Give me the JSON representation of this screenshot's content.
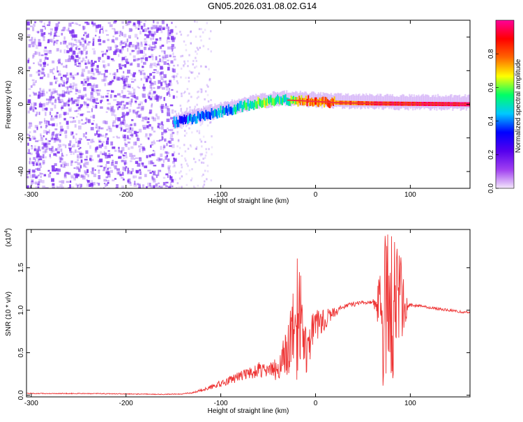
{
  "title": "GN05.2026.031.08.02.G14",
  "colors": {
    "snr_line": "#ee3333",
    "spectrum_noise": "#7a2cf0",
    "spectrum_trace": "#ee3344",
    "frame": "#000000"
  },
  "chart_data": [
    {
      "type": "heatmap",
      "xlabel": "Height of straight line (km)",
      "ylabel": "Frequency (Hz)",
      "xlim": [
        -305,
        163
      ],
      "ylim": [
        -50,
        50
      ],
      "xticks": [
        -300,
        -200,
        -100,
        0,
        100
      ],
      "yticks": [
        -40,
        -20,
        0,
        20,
        40
      ],
      "colorbar": {
        "label": "Normalized spectral amplitude",
        "range": [
          0.0,
          1.0
        ],
        "ticks": [
          0.0,
          0.2,
          0.4,
          0.6,
          0.8
        ],
        "tick_labels": [
          "0.0",
          "0.2",
          "0.4",
          "0.6",
          "0.8"
        ],
        "colormap": [
          "#f4e8fb",
          "#a040f0",
          "#5500ee",
          "#0000ff",
          "#00c8ff",
          "#00ff66",
          "#ffff00",
          "#ff6600",
          "#ff0000",
          "#ff0099"
        ]
      },
      "ridge": {
        "x": [
          -150,
          -120,
          -90,
          -60,
          -45,
          -30,
          -10,
          20,
          60,
          100,
          163
        ],
        "frequency": [
          -11,
          -7,
          -3,
          1,
          2,
          2.5,
          2,
          1,
          0.5,
          0.3,
          0
        ],
        "amplitude": [
          0.35,
          0.4,
          0.45,
          0.6,
          0.55,
          0.5,
          0.8,
          0.75,
          0.85,
          0.9,
          0.95
        ]
      },
      "noise_region": {
        "x": [
          -305,
          -150
        ],
        "amplitude": 0.15
      }
    },
    {
      "type": "line",
      "xlabel": "Height of straight line (km)",
      "ylabel": "SNR (10 * v/v)",
      "y_multiplier": "(x10",
      "y_multiplier_exp": "4",
      "xlim": [
        -305,
        163
      ],
      "ylim": [
        -0.02,
        1.95
      ],
      "xticks": [
        -300,
        -200,
        -100,
        0,
        100
      ],
      "yticks": [
        0.0,
        0.5,
        1.0,
        1.5
      ],
      "ytick_labels": [
        "0.0",
        "0.5",
        "1.0",
        "1.5"
      ],
      "series": [
        {
          "x": [
            -305,
            -250,
            -200,
            -160,
            -140,
            -130,
            -120,
            -110,
            -100,
            -90,
            -80,
            -70,
            -60,
            -50,
            -40,
            -30,
            -25,
            -20,
            -17,
            -15,
            -10,
            -5,
            0,
            10,
            20,
            30,
            40,
            50,
            60,
            65,
            70,
            75,
            80,
            85,
            90,
            95,
            100,
            110,
            120,
            140,
            163
          ],
          "values": [
            0.02,
            0.02,
            0.015,
            0.01,
            0.015,
            0.03,
            0.06,
            0.1,
            0.14,
            0.18,
            0.22,
            0.26,
            0.3,
            0.28,
            0.32,
            0.45,
            0.7,
            0.85,
            0.95,
            0.8,
            0.55,
            0.7,
            0.8,
            0.9,
            0.98,
            1.04,
            1.07,
            1.09,
            1.09,
            1.1,
            0.9,
            1.1,
            1.0,
            1.12,
            1.08,
            1.06,
            1.06,
            1.05,
            1.03,
            1.0,
            0.97
          ],
          "noise": [
            0.005,
            0.005,
            0.005,
            0.005,
            0.005,
            0.01,
            0.02,
            0.03,
            0.04,
            0.05,
            0.06,
            0.07,
            0.09,
            0.08,
            0.15,
            0.35,
            0.45,
            0.9,
            0.9,
            0.4,
            0.35,
            0.3,
            0.2,
            0.12,
            0.06,
            0.03,
            0.03,
            0.02,
            0.02,
            0.2,
            0.85,
            0.85,
            0.9,
            0.85,
            0.6,
            0.2,
            0.02,
            0.015,
            0.015,
            0.015,
            0.015
          ]
        }
      ]
    }
  ]
}
